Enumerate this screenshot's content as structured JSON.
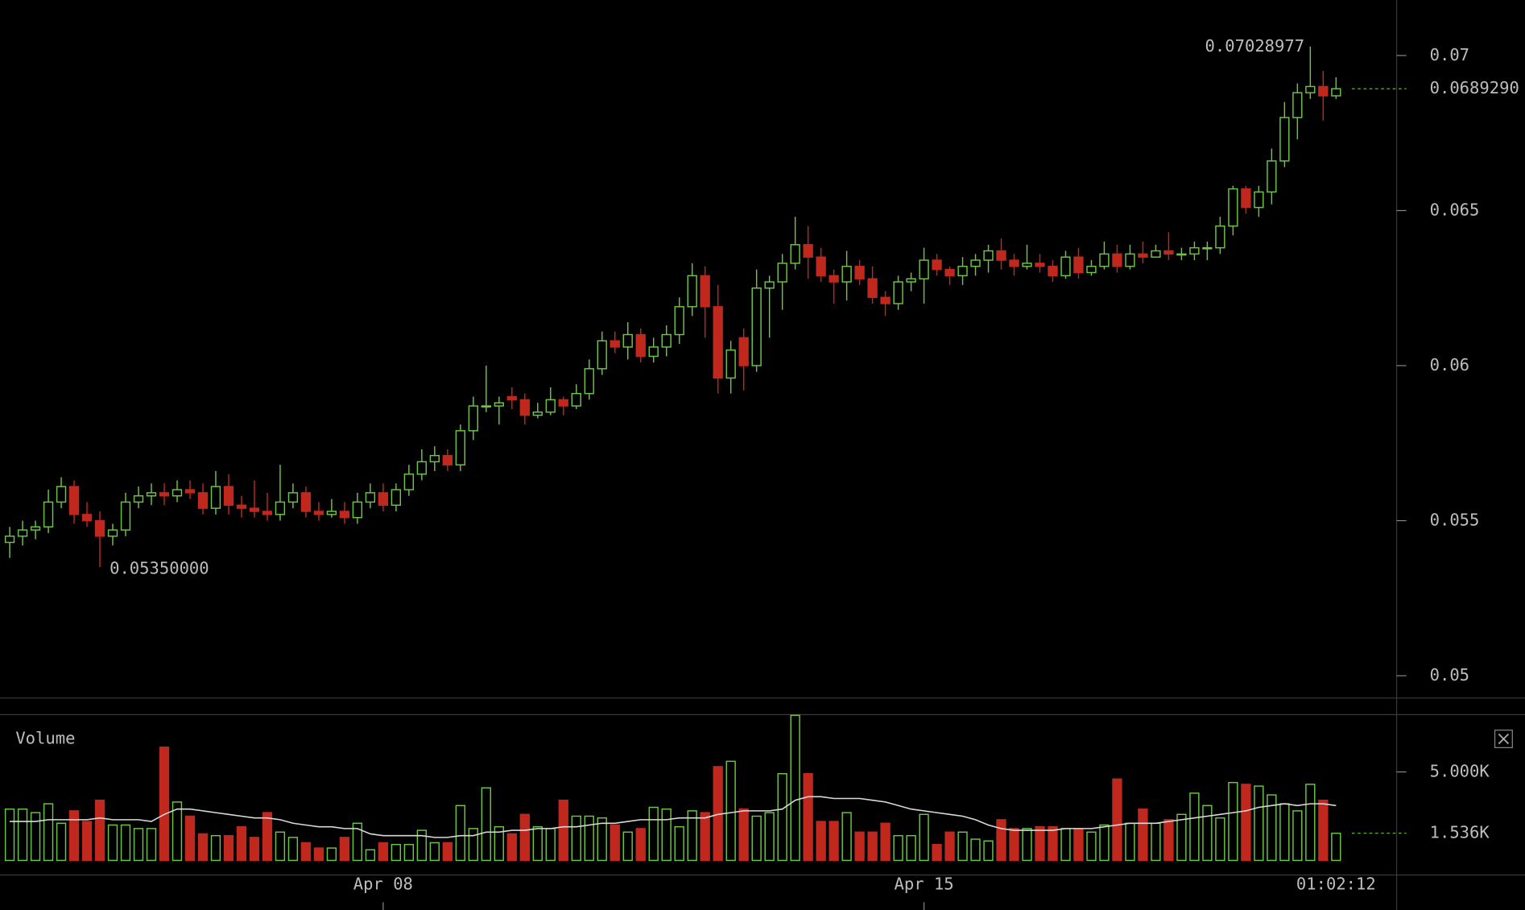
{
  "chart_data": {
    "type": "candlestick",
    "up_color": "#6cc644",
    "down_color": "#c0281e",
    "categories": [
      null,
      null,
      null,
      null,
      null,
      null,
      null,
      null,
      null,
      null,
      null,
      null,
      null,
      null,
      null,
      null,
      null,
      null,
      null,
      null,
      null,
      null,
      null,
      null,
      null,
      null,
      null,
      null,
      null,
      "Apr 08",
      null,
      null,
      null,
      null,
      null,
      null,
      null,
      null,
      null,
      null,
      null,
      null,
      null,
      null,
      null,
      null,
      null,
      null,
      null,
      null,
      null,
      null,
      null,
      null,
      null,
      null,
      null,
      null,
      null,
      null,
      null,
      null,
      null,
      null,
      null,
      null,
      null,
      null,
      null,
      null,
      null,
      "Apr 15",
      null,
      null,
      null,
      null,
      null,
      null,
      null,
      null,
      null,
      null,
      null,
      null,
      null,
      null,
      null,
      null,
      null,
      null,
      null,
      null,
      null,
      null,
      null,
      null,
      null,
      null,
      null,
      null,
      null,
      null,
      null,
      null
    ],
    "time_label": "01:02:12",
    "open": [
      0.0543,
      0.0545,
      0.0547,
      0.0548,
      0.0556,
      0.0561,
      0.0552,
      0.055,
      0.0545,
      0.0547,
      0.0556,
      0.0558,
      0.0559,
      0.0558,
      0.056,
      0.0559,
      0.0554,
      0.0561,
      0.0555,
      0.0554,
      0.0553,
      0.0552,
      0.0556,
      0.0559,
      0.0553,
      0.0552,
      0.0553,
      0.0551,
      0.0556,
      0.0559,
      0.0555,
      0.056,
      0.0565,
      0.0569,
      0.0571,
      0.0568,
      0.0579,
      0.0587,
      0.0587,
      0.059,
      0.0589,
      0.0584,
      0.0585,
      0.0589,
      0.0587,
      0.0591,
      0.0599,
      0.0608,
      0.0606,
      0.061,
      0.0603,
      0.0606,
      0.061,
      0.0619,
      0.0629,
      0.0619,
      0.0596,
      0.0609,
      0.06,
      0.0625,
      0.0627,
      0.0633,
      0.0639,
      0.0635,
      0.0629,
      0.0627,
      0.0632,
      0.0628,
      0.0622,
      0.062,
      0.0627,
      0.0628,
      0.0634,
      0.0631,
      0.0629,
      0.0632,
      0.0634,
      0.0637,
      0.0634,
      0.0632,
      0.0633,
      0.0632,
      0.0629,
      0.0635,
      0.063,
      0.0632,
      0.0636,
      0.0632,
      0.0636,
      0.0635,
      0.0637,
      0.0636,
      0.0636,
      0.0638,
      0.0638,
      0.0645,
      0.0657,
      0.0651,
      0.0656,
      0.0666,
      0.068,
      0.0688,
      0.069,
      0.0687
    ],
    "high": [
      0.0548,
      0.055,
      0.055,
      0.056,
      0.0564,
      0.0563,
      0.0556,
      0.0553,
      0.0549,
      0.0559,
      0.0561,
      0.0562,
      0.0562,
      0.0563,
      0.0563,
      0.0562,
      0.0566,
      0.0565,
      0.0558,
      0.0563,
      0.0559,
      0.0568,
      0.0562,
      0.0561,
      0.0556,
      0.0557,
      0.0556,
      0.0559,
      0.0562,
      0.0562,
      0.0562,
      0.0568,
      0.0573,
      0.0574,
      0.0573,
      0.0581,
      0.059,
      0.06,
      0.059,
      0.0593,
      0.0591,
      0.0588,
      0.0593,
      0.059,
      0.0594,
      0.0602,
      0.0611,
      0.0611,
      0.0614,
      0.0612,
      0.0609,
      0.0613,
      0.0622,
      0.0633,
      0.0632,
      0.0626,
      0.0608,
      0.0612,
      0.0631,
      0.0629,
      0.0636,
      0.0648,
      0.0645,
      0.0638,
      0.0631,
      0.0637,
      0.0634,
      0.0632,
      0.0624,
      0.0629,
      0.063,
      0.0638,
      0.0636,
      0.0632,
      0.0635,
      0.0636,
      0.0639,
      0.0641,
      0.0636,
      0.0639,
      0.0636,
      0.0634,
      0.0637,
      0.0638,
      0.0634,
      0.064,
      0.0639,
      0.0639,
      0.064,
      0.0639,
      0.0643,
      0.0638,
      0.064,
      0.064,
      0.0648,
      0.0658,
      0.0658,
      0.0658,
      0.067,
      0.0685,
      0.0691,
      0.07028977,
      0.0695,
      0.0693
    ],
    "low": [
      0.0538,
      0.0542,
      0.0544,
      0.0546,
      0.0554,
      0.0549,
      0.0548,
      0.0535,
      0.0542,
      0.0545,
      0.0554,
      0.0555,
      0.0555,
      0.0556,
      0.0557,
      0.0552,
      0.0552,
      0.0552,
      0.0551,
      0.0551,
      0.055,
      0.055,
      0.0554,
      0.0551,
      0.055,
      0.0551,
      0.0549,
      0.0549,
      0.0554,
      0.0553,
      0.0553,
      0.0558,
      0.0563,
      0.0566,
      0.0566,
      0.0566,
      0.0576,
      0.0585,
      0.0581,
      0.0586,
      0.0581,
      0.0583,
      0.0584,
      0.0584,
      0.0586,
      0.0589,
      0.0597,
      0.0604,
      0.0602,
      0.0601,
      0.0601,
      0.0603,
      0.0607,
      0.0616,
      0.0609,
      0.0591,
      0.0591,
      0.0592,
      0.0598,
      0.0609,
      0.0618,
      0.0631,
      0.0628,
      0.0627,
      0.062,
      0.0621,
      0.0626,
      0.062,
      0.0616,
      0.0618,
      0.0624,
      0.062,
      0.0629,
      0.0626,
      0.0626,
      0.0629,
      0.063,
      0.0631,
      0.0629,
      0.0631,
      0.063,
      0.0627,
      0.0628,
      0.0628,
      0.0629,
      0.0631,
      0.063,
      0.0631,
      0.0633,
      0.0635,
      0.0634,
      0.0634,
      0.0634,
      0.0634,
      0.0636,
      0.0642,
      0.0649,
      0.0648,
      0.0652,
      0.0664,
      0.0673,
      0.0686,
      0.0679,
      0.0686
    ],
    "close": [
      0.0545,
      0.0547,
      0.0548,
      0.0556,
      0.0561,
      0.0552,
      0.055,
      0.0545,
      0.0547,
      0.0556,
      0.0558,
      0.0559,
      0.0558,
      0.056,
      0.0559,
      0.0554,
      0.0561,
      0.0555,
      0.0554,
      0.0553,
      0.0552,
      0.0556,
      0.0559,
      0.0553,
      0.0552,
      0.0553,
      0.0551,
      0.0556,
      0.0559,
      0.0555,
      0.056,
      0.0565,
      0.0569,
      0.0571,
      0.0568,
      0.0579,
      0.0587,
      0.0587,
      0.0588,
      0.0589,
      0.0584,
      0.0585,
      0.0589,
      0.0587,
      0.0591,
      0.0599,
      0.0608,
      0.0606,
      0.061,
      0.0603,
      0.0606,
      0.061,
      0.0619,
      0.0629,
      0.0619,
      0.0596,
      0.0605,
      0.06,
      0.0625,
      0.0627,
      0.0633,
      0.0639,
      0.0635,
      0.0629,
      0.0627,
      0.0632,
      0.0628,
      0.0622,
      0.062,
      0.0627,
      0.0628,
      0.0634,
      0.0631,
      0.0629,
      0.0632,
      0.0634,
      0.0637,
      0.0634,
      0.0632,
      0.0633,
      0.0632,
      0.0629,
      0.0635,
      0.063,
      0.0632,
      0.0636,
      0.0632,
      0.0636,
      0.0635,
      0.0637,
      0.0636,
      0.0636,
      0.0638,
      0.0638,
      0.0645,
      0.0657,
      0.0651,
      0.0656,
      0.0666,
      0.068,
      0.0688,
      0.069,
      0.0687,
      0.068929
    ],
    "high_labels": [
      null,
      null,
      null,
      null,
      null,
      null,
      null,
      null,
      null,
      null,
      null,
      null,
      null,
      null,
      null,
      null,
      null,
      null,
      null,
      null,
      null,
      null,
      null,
      null,
      null,
      null,
      null,
      null,
      null,
      null,
      null,
      null,
      null,
      null,
      null,
      null,
      null,
      null,
      null,
      null,
      null,
      null,
      null,
      null,
      null,
      null,
      null,
      null,
      null,
      null,
      null,
      null,
      null,
      null,
      null,
      null,
      null,
      null,
      null,
      null,
      null,
      null,
      null,
      null,
      null,
      null,
      null,
      null,
      null,
      null,
      null,
      null,
      null,
      null,
      null,
      null,
      null,
      null,
      null,
      null,
      null,
      null,
      null,
      null,
      null,
      null,
      null,
      null,
      null,
      null,
      null,
      null,
      null,
      null,
      null,
      null,
      null,
      null,
      null,
      null,
      null,
      "0.07028977",
      null,
      null
    ],
    "low_labels": [
      null,
      null,
      null,
      null,
      null,
      null,
      null,
      "0.05350000",
      null,
      null,
      null,
      null,
      null,
      null,
      null,
      null,
      null,
      null,
      null,
      null,
      null,
      null,
      null,
      null,
      null,
      null,
      null,
      null,
      null,
      null,
      null,
      null,
      null,
      null,
      null,
      null,
      null,
      null,
      null,
      null,
      null,
      null,
      null,
      null,
      null,
      null,
      null,
      null,
      null,
      null,
      null,
      null,
      null,
      null,
      null,
      null,
      null,
      null,
      null,
      null,
      null,
      null,
      null,
      null,
      null,
      null,
      null,
      null,
      null,
      null,
      null,
      null,
      null,
      null,
      null,
      null,
      null,
      null,
      null,
      null,
      null,
      null,
      null,
      null,
      null,
      null,
      null,
      null,
      null,
      null,
      null,
      null,
      null,
      null,
      null,
      null,
      null,
      null,
      null,
      null,
      null,
      null,
      null,
      null
    ],
    "close_labels": [
      null,
      null,
      null,
      null,
      null,
      null,
      null,
      null,
      null,
      null,
      null,
      null,
      null,
      null,
      null,
      null,
      null,
      null,
      null,
      null,
      null,
      null,
      null,
      null,
      null,
      null,
      null,
      null,
      null,
      null,
      null,
      null,
      null,
      null,
      null,
      null,
      null,
      null,
      null,
      null,
      null,
      null,
      null,
      null,
      null,
      null,
      null,
      null,
      null,
      null,
      null,
      null,
      null,
      null,
      null,
      null,
      null,
      null,
      null,
      null,
      null,
      null,
      null,
      null,
      null,
      null,
      null,
      null,
      null,
      null,
      null,
      null,
      null,
      null,
      null,
      null,
      null,
      null,
      null,
      null,
      null,
      null,
      null,
      null,
      null,
      null,
      null,
      null,
      null,
      null,
      null,
      null,
      null,
      null,
      null,
      null,
      null,
      null,
      null,
      null,
      null,
      null,
      null,
      "0.0689290"
    ],
    "ylim": [
      0.04928,
      0.07179
    ],
    "yticks": [
      0.05,
      0.055,
      0.06,
      0.065,
      0.07
    ],
    "volume": {
      "title": "Volume",
      "values": [
        2900,
        2900,
        2700,
        3200,
        2100,
        2800,
        2200,
        3400,
        2000,
        2000,
        1800,
        1800,
        6400,
        3300,
        2500,
        1500,
        1400,
        1400,
        1900,
        1300,
        2700,
        1600,
        1300,
        1000,
        700,
        700,
        1300,
        2100,
        600,
        1000,
        900,
        900,
        1700,
        1000,
        1000,
        3100,
        1800,
        4100,
        1900,
        1500,
        2600,
        1900,
        1800,
        3400,
        2500,
        2500,
        2400,
        2000,
        1600,
        1800,
        3000,
        2900,
        1900,
        2800,
        2700,
        5300,
        5600,
        2900,
        2500,
        2700,
        4900,
        8200,
        4900,
        2200,
        2200,
        2700,
        1600,
        1600,
        2100,
        1400,
        1400,
        2600,
        900,
        1600,
        1600,
        1200,
        1100,
        2300,
        1800,
        1800,
        1900,
        1900,
        1800,
        1800,
        1600,
        2000,
        4600,
        2100,
        2900,
        2100,
        2300,
        2600,
        3800,
        3100,
        2400,
        4400,
        4300,
        4200,
        3700,
        3200,
        2800,
        4300,
        3400,
        1536
      ],
      "value_labels": [
        null,
        null,
        null,
        null,
        null,
        null,
        null,
        null,
        null,
        null,
        null,
        null,
        null,
        null,
        null,
        null,
        null,
        null,
        null,
        null,
        null,
        null,
        null,
        null,
        null,
        null,
        null,
        null,
        null,
        null,
        null,
        null,
        null,
        null,
        null,
        null,
        null,
        null,
        null,
        null,
        null,
        null,
        null,
        null,
        null,
        null,
        null,
        null,
        null,
        null,
        null,
        null,
        null,
        null,
        null,
        null,
        null,
        null,
        null,
        null,
        null,
        null,
        null,
        null,
        null,
        null,
        null,
        null,
        null,
        null,
        null,
        null,
        null,
        null,
        null,
        null,
        null,
        null,
        null,
        null,
        null,
        null,
        null,
        null,
        null,
        null,
        null,
        null,
        null,
        null,
        null,
        null,
        null,
        null,
        null,
        null,
        null,
        null,
        null,
        null,
        null,
        null,
        null,
        "1.536K"
      ],
      "ma_color": "#d9d9d9",
      "ma": [
        2200,
        2200,
        2200,
        2300,
        2300,
        2300,
        2300,
        2400,
        2300,
        2300,
        2300,
        2200,
        2600,
        2900,
        2900,
        2800,
        2700,
        2600,
        2500,
        2400,
        2400,
        2300,
        2100,
        2000,
        1900,
        1900,
        1800,
        1800,
        1500,
        1400,
        1400,
        1400,
        1400,
        1300,
        1300,
        1400,
        1400,
        1600,
        1600,
        1700,
        1700,
        1800,
        1800,
        1900,
        1900,
        2000,
        2100,
        2100,
        2200,
        2300,
        2300,
        2300,
        2400,
        2400,
        2400,
        2600,
        2700,
        2800,
        2800,
        2800,
        2900,
        3400,
        3600,
        3600,
        3500,
        3500,
        3500,
        3400,
        3300,
        3100,
        2900,
        2800,
        2700,
        2600,
        2500,
        2300,
        2000,
        1800,
        1700,
        1700,
        1700,
        1700,
        1800,
        1800,
        1800,
        1900,
        2000,
        2100,
        2100,
        2100,
        2200,
        2300,
        2400,
        2500,
        2600,
        2700,
        2800,
        3000,
        3100,
        3200,
        3100,
        3200,
        3200,
        3100
      ],
      "ylim": [
        0,
        8240
      ],
      "yticks": [
        {
          "value": 5000,
          "label": "5.000K"
        }
      ]
    }
  }
}
